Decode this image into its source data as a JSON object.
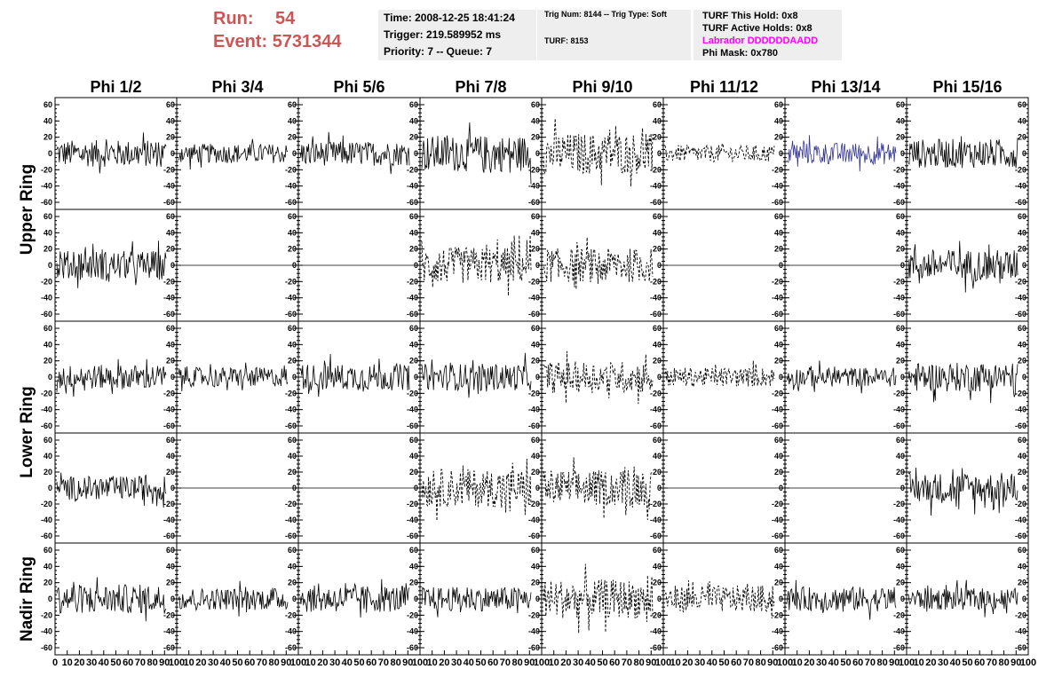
{
  "header": {
    "run_label": "Run:",
    "run_value": "54",
    "event_label": "Event:",
    "event_value": "5731344",
    "time": "Time: 2008-12-25 18:41:24",
    "trigger": "Trigger: 219.589952 ms",
    "priority": "Priority: 7 -- Queue: 7",
    "trig_num": "Trig Num: 8144 -- Trig Type: Soft",
    "turf": "TURF: 8153",
    "turf_this_hold": "TURF This Hold: 0x8",
    "turf_active_holds": "TURF Active Holds: 0x8",
    "labrador": "Labrador DDDDDDAADD",
    "phi_mask": "Phi Mask: 0x780"
  },
  "colors": {
    "run": "#cc5555",
    "labrador": "#ff00ff",
    "trace": "#000000",
    "trace_highlight": "#333399",
    "info_bg": "#eeeeee"
  },
  "chart_data": {
    "type": "line",
    "columns": [
      "Phi 1/2",
      "Phi 3/4",
      "Phi 5/6",
      "Phi 7/8",
      "Phi 9/10",
      "Phi 11/12",
      "Phi 13/14",
      "Phi 15/16"
    ],
    "ring_labels": [
      {
        "name": "Upper Ring",
        "rows": [
          0,
          1
        ]
      },
      {
        "name": "Lower Ring",
        "rows": [
          2,
          3
        ]
      },
      {
        "name": "Nadir Ring",
        "rows": [
          4
        ]
      }
    ],
    "xlim": [
      0,
      100
    ],
    "ylim": [
      -60,
      60
    ],
    "y_ticks": [
      -60,
      -40,
      -20,
      0,
      20,
      40,
      60
    ],
    "x_ticks": [
      0,
      10,
      20,
      30,
      40,
      50,
      60,
      70,
      80,
      90,
      100
    ],
    "x_tick_labels": [
      "0",
      "10",
      "20",
      "30",
      "40",
      "50",
      "60",
      "70",
      "80",
      "90",
      "100"
    ],
    "panels": [
      [
        {
          "style": "solid",
          "amp": 22,
          "color": "#000000"
        },
        {
          "style": "solid",
          "amp": 16,
          "color": "#000000"
        },
        {
          "style": "solid",
          "amp": 20,
          "color": "#000000"
        },
        {
          "style": "solid",
          "amp": 30,
          "color": "#000000"
        },
        {
          "style": "dashed",
          "amp": 34,
          "color": "#000000"
        },
        {
          "style": "dashed",
          "amp": 14,
          "color": "#000000"
        },
        {
          "style": "solid",
          "amp": 18,
          "color": "#333399"
        },
        {
          "style": "solid",
          "amp": 24,
          "color": "#000000"
        }
      ],
      [
        {
          "style": "solid",
          "amp": 24,
          "color": "#000000"
        },
        {
          "style": "flat",
          "amp": 0,
          "color": "#000000"
        },
        {
          "style": "flat",
          "amp": 0,
          "color": "#000000"
        },
        {
          "style": "dashed",
          "amp": 30,
          "color": "#000000"
        },
        {
          "style": "dashed",
          "amp": 28,
          "color": "#000000"
        },
        {
          "style": "flat",
          "amp": 0,
          "color": "#000000"
        },
        {
          "style": "flat",
          "amp": 0,
          "color": "#000000"
        },
        {
          "style": "solid",
          "amp": 26,
          "color": "#000000"
        }
      ],
      [
        {
          "style": "solid",
          "amp": 20,
          "color": "#000000"
        },
        {
          "style": "solid",
          "amp": 16,
          "color": "#000000"
        },
        {
          "style": "solid",
          "amp": 22,
          "color": "#000000"
        },
        {
          "style": "solid",
          "amp": 22,
          "color": "#000000"
        },
        {
          "style": "dashed",
          "amp": 26,
          "color": "#000000"
        },
        {
          "style": "dashed",
          "amp": 16,
          "color": "#000000"
        },
        {
          "style": "solid",
          "amp": 16,
          "color": "#000000"
        },
        {
          "style": "solid",
          "amp": 24,
          "color": "#000000"
        }
      ],
      [
        {
          "style": "solid",
          "amp": 20,
          "color": "#000000"
        },
        {
          "style": "flat",
          "amp": 0,
          "color": "#000000"
        },
        {
          "style": "flat",
          "amp": 0,
          "color": "#000000"
        },
        {
          "style": "dashed",
          "amp": 32,
          "color": "#000000"
        },
        {
          "style": "dashed",
          "amp": 30,
          "color": "#000000"
        },
        {
          "style": "flat",
          "amp": 0,
          "color": "#000000"
        },
        {
          "style": "flat",
          "amp": 0,
          "color": "#000000"
        },
        {
          "style": "solid",
          "amp": 26,
          "color": "#000000"
        }
      ],
      [
        {
          "style": "solid",
          "amp": 24,
          "color": "#000000"
        },
        {
          "style": "solid",
          "amp": 18,
          "color": "#000000"
        },
        {
          "style": "solid",
          "amp": 22,
          "color": "#000000"
        },
        {
          "style": "solid",
          "amp": 20,
          "color": "#000000"
        },
        {
          "style": "dashed",
          "amp": 32,
          "color": "#000000"
        },
        {
          "style": "dashed",
          "amp": 22,
          "color": "#000000"
        },
        {
          "style": "solid",
          "amp": 20,
          "color": "#000000"
        },
        {
          "style": "solid",
          "amp": 18,
          "color": "#000000"
        }
      ]
    ]
  }
}
